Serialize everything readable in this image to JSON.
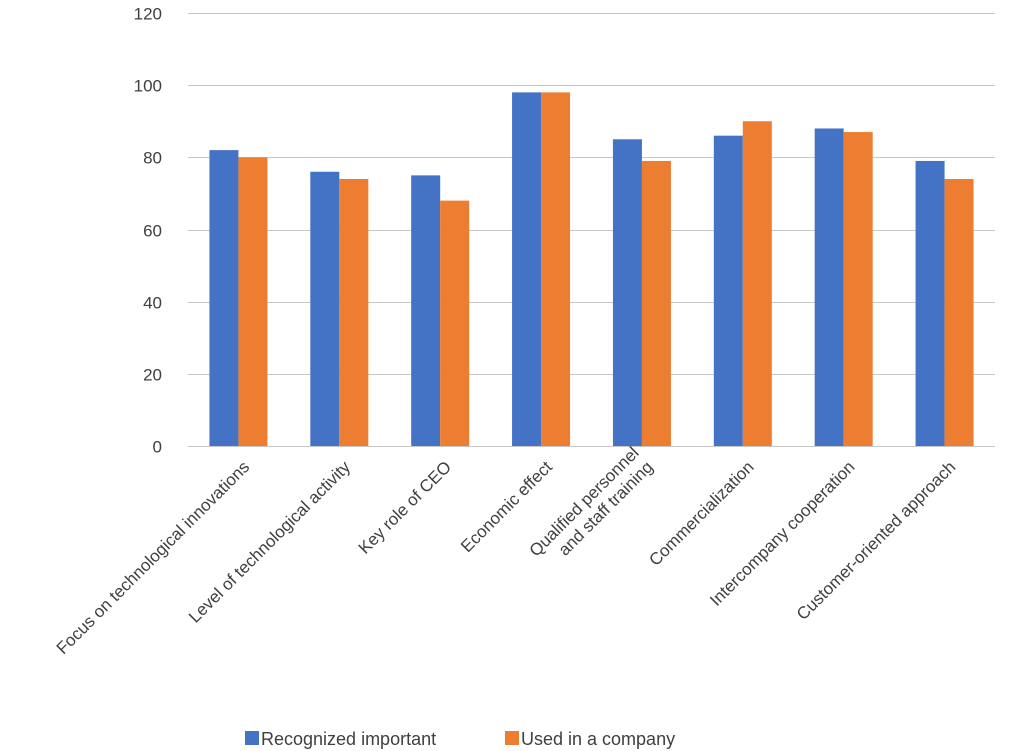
{
  "chart_data": {
    "type": "bar",
    "title": "",
    "xlabel": "",
    "ylabel": "",
    "ylim": [
      0,
      120
    ],
    "yticks": [
      0,
      20,
      40,
      60,
      80,
      100,
      120
    ],
    "grid": true,
    "legend_position": "bottom",
    "categories": [
      [
        "Focus on technological innovations"
      ],
      [
        "Level of technological activity"
      ],
      [
        "Key role of CEO"
      ],
      [
        "Economic effect"
      ],
      [
        "Qualified personnel",
        "and staff training"
      ],
      [
        "Commercialization"
      ],
      [
        "Intercompany cooperation"
      ],
      [
        "Customer-oriented approach"
      ]
    ],
    "series": [
      {
        "name": "Recognized important",
        "color": "#4472C4",
        "values": [
          82,
          76,
          75,
          98,
          85,
          86,
          88,
          79
        ]
      },
      {
        "name": "Used in a company",
        "color": "#ED7D31",
        "values": [
          80,
          74,
          68,
          98,
          79,
          90,
          87,
          74
        ]
      }
    ]
  }
}
